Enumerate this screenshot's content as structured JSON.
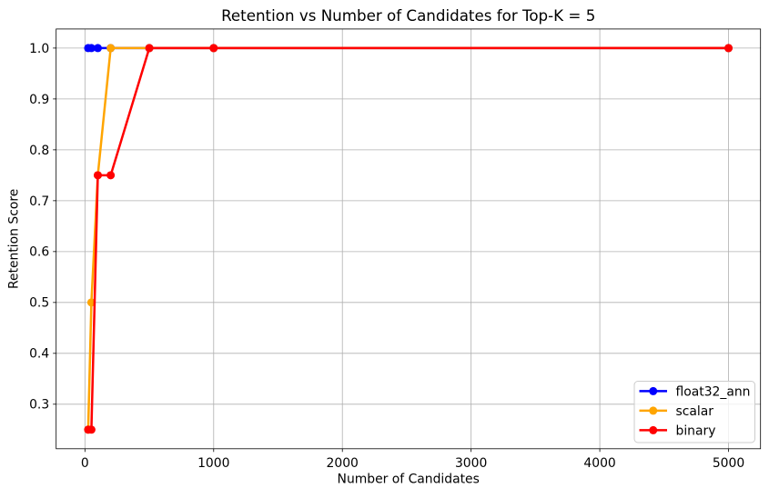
{
  "chart_data": {
    "type": "line",
    "title": "Retention vs Number of Candidates for Top-K = 5",
    "xlabel": "Number of Candidates",
    "ylabel": "Retention Score",
    "x": [
      25,
      50,
      100,
      200,
      500,
      1000,
      5000
    ],
    "series": [
      {
        "name": "float32_ann",
        "color": "#0000ff",
        "values": [
          1.0,
          1.0,
          1.0,
          1.0,
          1.0,
          1.0,
          1.0
        ]
      },
      {
        "name": "scalar",
        "color": "#ffa500",
        "values": [
          0.25,
          0.5,
          0.75,
          1.0,
          1.0,
          1.0,
          1.0
        ]
      },
      {
        "name": "binary",
        "color": "#ff0000",
        "values": [
          0.25,
          0.25,
          0.75,
          0.75,
          1.0,
          1.0,
          1.0
        ]
      }
    ],
    "xlim": [
      -223.75,
      5248.75
    ],
    "ylim": [
      0.2125,
      1.0375
    ],
    "xticks": {
      "values": [
        0,
        1000,
        2000,
        3000,
        4000,
        5000
      ],
      "labels": [
        "0",
        "1000",
        "2000",
        "3000",
        "4000",
        "5000"
      ]
    },
    "yticks": {
      "values": [
        0.3,
        0.4,
        0.5,
        0.6,
        0.7,
        0.8,
        0.9,
        1.0
      ],
      "labels": [
        "0.3",
        "0.4",
        "0.5",
        "0.6",
        "0.7",
        "0.8",
        "0.9",
        "1.0"
      ]
    },
    "grid": true,
    "grid_color": "#b0b0b0",
    "spine_color": "#000000",
    "background": "#ffffff",
    "legend": {
      "position": "lower right",
      "entries": [
        "float32_ann",
        "scalar",
        "binary"
      ]
    },
    "line_width": 2.5,
    "marker": "o",
    "marker_size": 9
  }
}
